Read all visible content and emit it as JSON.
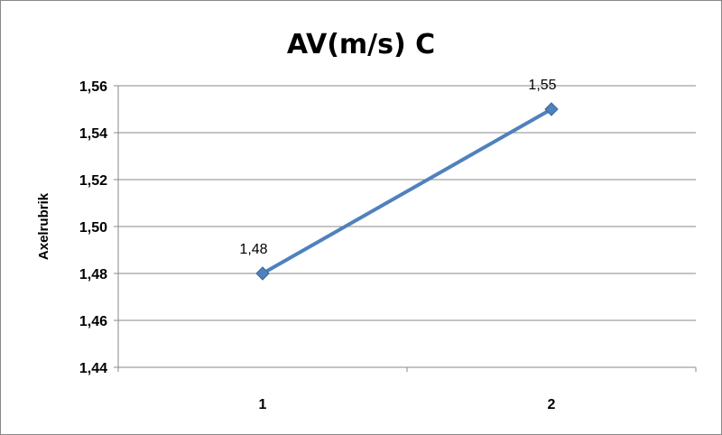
{
  "chart_data": {
    "type": "line",
    "title": "AV(m/s) C",
    "ylabel": "Axelrubrik",
    "xlabel": "",
    "categories": [
      "1",
      "2"
    ],
    "series": [
      {
        "values": [
          1.48,
          1.55
        ],
        "data_labels": [
          "1,48",
          "1,55"
        ]
      }
    ],
    "ylim": [
      1.44,
      1.56
    ],
    "yticks": [
      1.44,
      1.46,
      1.48,
      1.5,
      1.52,
      1.54,
      1.56
    ],
    "ytick_labels": [
      "1,44",
      "1,46",
      "1,48",
      "1,50",
      "1,52",
      "1,54",
      "1,56"
    ],
    "grid": true,
    "legend": "none",
    "line_color": "#4F81BD"
  }
}
